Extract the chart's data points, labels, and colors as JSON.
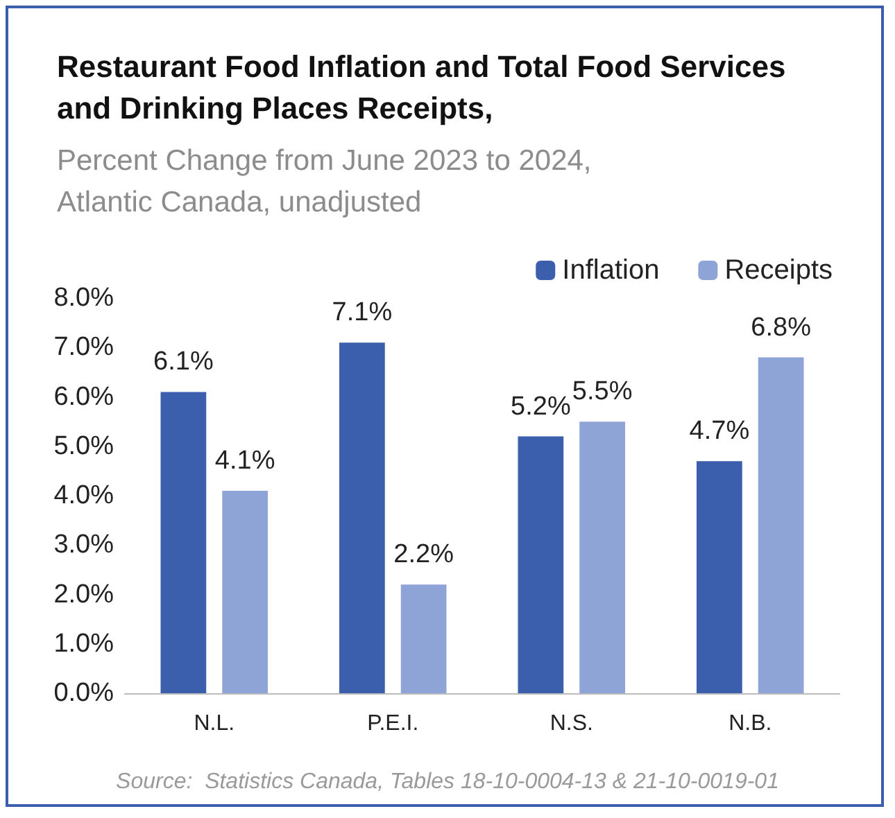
{
  "chart_data": {
    "type": "bar",
    "title": "Restaurant Food Inflation and Total Food Services and Drinking Places Receipts,",
    "subtitle": "Percent Change from June 2023 to 2024, Atlantic Canada, unadjusted",
    "categories": [
      "N.L.",
      "P.E.I.",
      "N.S.",
      "N.B."
    ],
    "series": [
      {
        "name": "Inflation",
        "color": "#3c5fad",
        "values": [
          6.1,
          7.1,
          5.2,
          4.7
        ],
        "value_labels": [
          "6.1%",
          "7.1%",
          "5.2%",
          "4.7%"
        ]
      },
      {
        "name": "Receipts",
        "color": "#8fa4d6",
        "values": [
          4.1,
          2.2,
          5.5,
          6.8
        ],
        "value_labels": [
          "4.1%",
          "2.2%",
          "5.5%",
          "6.8%"
        ]
      }
    ],
    "ylim": [
      0,
      8
    ],
    "yticks": [
      {
        "value": 0,
        "label": "0.0%"
      },
      {
        "value": 1,
        "label": "1.0%"
      },
      {
        "value": 2,
        "label": "2.0%"
      },
      {
        "value": 3,
        "label": "3.0%"
      },
      {
        "value": 4,
        "label": "4.0%"
      },
      {
        "value": 5,
        "label": "5.0%"
      },
      {
        "value": 6,
        "label": "6.0%"
      },
      {
        "value": 7,
        "label": "7.0%"
      },
      {
        "value": 8,
        "label": "8.0%"
      }
    ],
    "grid": false,
    "legend": "top right",
    "annotations": [
      "Source:  Statistics Canada, Tables 18-10-0004-13 & 21-10-0019-01"
    ]
  }
}
